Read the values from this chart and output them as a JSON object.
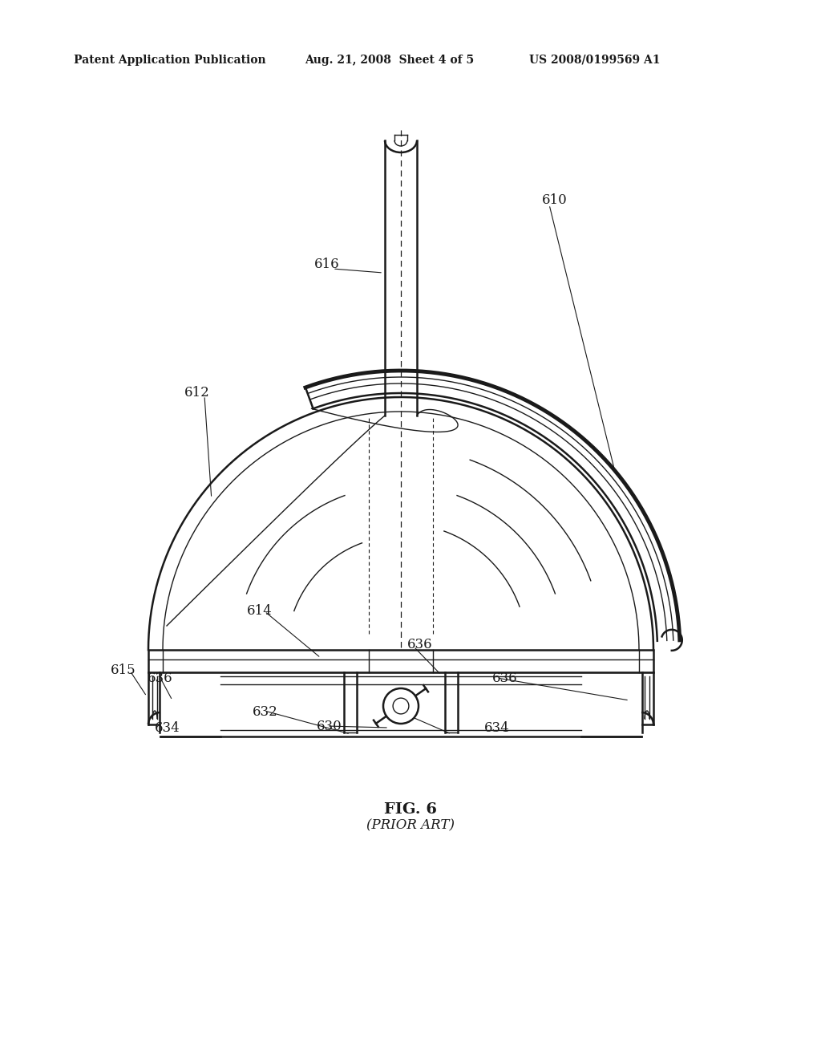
{
  "bg_color": "#ffffff",
  "line_color": "#1a1a1a",
  "text_color": "#1a1a1a",
  "header_left": "Patent Application Publication",
  "header_mid": "Aug. 21, 2008  Sheet 4 of 5",
  "header_right": "US 2008/0199569 A1",
  "fig_label": "FIG. 6",
  "fig_sublabel": "(PRIOR ART)"
}
